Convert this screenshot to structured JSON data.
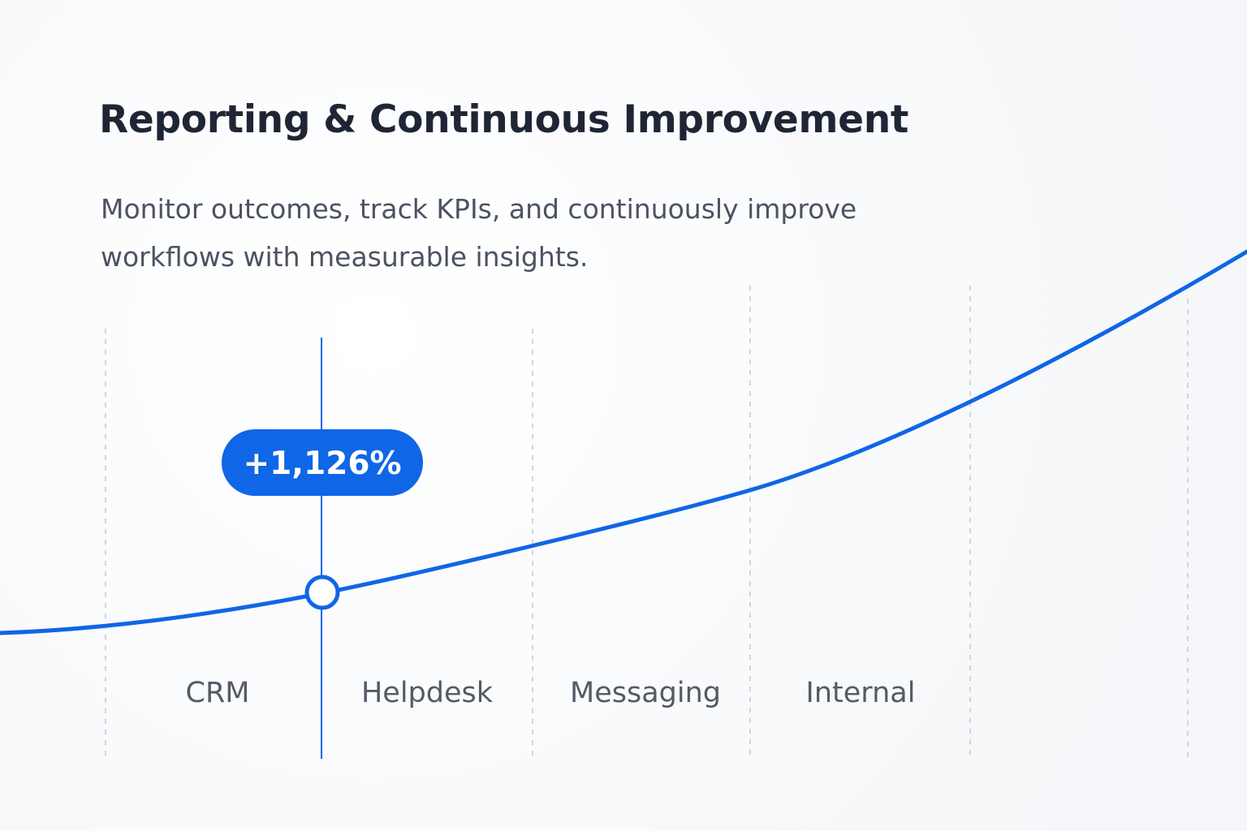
{
  "header": {
    "title": "Reporting & Continuous Improvement",
    "subtitle": "Monitor outcomes, track KPIs, and continuously improve workflows with measurable insights."
  },
  "colors": {
    "accent": "#0f66e6",
    "text_dark": "#1e2636",
    "text_muted": "#4b5262",
    "grid": "#c4c7cd"
  },
  "chart_data": {
    "type": "line",
    "title": "",
    "xlabel": "",
    "ylabel": "",
    "categories": [
      "CRM",
      "Helpdesk",
      "Messaging",
      "Internal"
    ],
    "grid": "vertical dashed separators",
    "highlight": {
      "category_boundary": "CRM / Helpdesk",
      "label": "+1,126%"
    }
  }
}
